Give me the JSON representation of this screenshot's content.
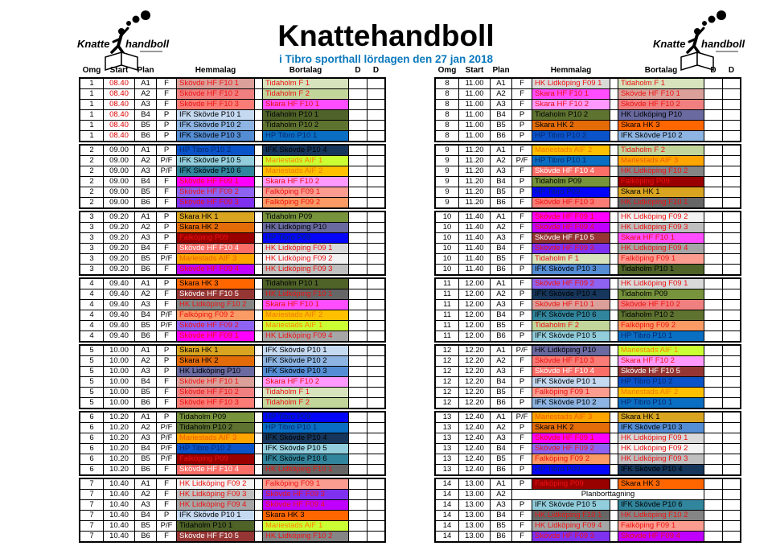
{
  "header": {
    "title": "Knattehandboll",
    "subtitle": "i Tibro sporthall lördagen den 27 jan 2018"
  },
  "logo": {
    "knatte": "Knatte",
    "handboll": "handboll"
  },
  "columns": {
    "omg": "Omg",
    "start": "Start",
    "plan": "Plan",
    "hemmalag": "Hemmalag",
    "bortalag": "Bortalag",
    "d1": "D",
    "d2": "D"
  },
  "special": {
    "planborttagning": "Planborttagning"
  },
  "colors": {
    "subtitle_blue": "#0a78be",
    "time_red": "#dd0000",
    "grid_black": "#000000"
  },
  "teams": {
    "Skövde HF F10 1": {
      "bg": "#dba09a",
      "fg": "#ee1111"
    },
    "Skövde HF F10 2": {
      "bg": "#f08080",
      "fg": "#ee1111"
    },
    "Skövde HF F10 3": {
      "bg": "#f97d76",
      "fg": "#ee1111"
    },
    "Skövde HF F10 4": {
      "bg": "#fa6e67",
      "fg": "#ffffff"
    },
    "Skövde HF F10 5": {
      "bg": "#963634",
      "fg": "#ffffff"
    },
    "Skövde HF F09 1": {
      "bg": "#ff00ff",
      "fg": "#ee1111"
    },
    "Skövde HF F09 2": {
      "bg": "#8f63f2",
      "fg": "#ee1111"
    },
    "Skövde HF F09 3": {
      "bg": "#7f31f0",
      "fg": "#ee1111"
    },
    "Skövde HF F09 4": {
      "bg": "#bf00ff",
      "fg": "#ee1111"
    },
    "Skara HF F10 1": {
      "bg": "#ff4dff",
      "fg": "#ee1111"
    },
    "Skara HF F10 2": {
      "bg": "#ff99ff",
      "fg": "#ee1111"
    },
    "Tidaholm F 1": {
      "bg": "#d6e3bc",
      "fg": "#ee1111"
    },
    "Tidaholm F 2": {
      "bg": "#c2d69b",
      "fg": "#ee1111"
    },
    "Falköping F09 1": {
      "bg": "#fa9d90",
      "fg": "#ee1111"
    },
    "Falköping F09 2": {
      "bg": "#fa9a65",
      "fg": "#ee1111"
    },
    "Falköping P09": {
      "bg": "#990000",
      "fg": "#ee1111"
    },
    "HK Lidköping F09 1": {
      "bg": "#d9d9d9",
      "fg": "#ee1111"
    },
    "HK Lidköping F09 2": {
      "bg": "#f2f2f2",
      "fg": "#ee1111"
    },
    "HK Lidköping F09 3": {
      "bg": "#bfbfbf",
      "fg": "#ee1111"
    },
    "HK Lidköping F09 4": {
      "bg": "#a6a6a6",
      "fg": "#ee1111"
    },
    "HK Lidköping F10 1": {
      "bg": "#666666",
      "fg": "#ee1111"
    },
    "HK Lidköping F10 2": {
      "bg": "#858585",
      "fg": "#ee1111"
    },
    "HK Lidköping P10": {
      "bg": "#6a6aa0",
      "fg": "#000000"
    },
    "IFK Skövde P10 1": {
      "bg": "#c5d9f1",
      "fg": "#000000"
    },
    "IFK Skövde P10 2": {
      "bg": "#8db4e2",
      "fg": "#000000"
    },
    "IFK Skövde P10 3": {
      "bg": "#548dd4",
      "fg": "#000000"
    },
    "IFK Skövde P10 4": {
      "bg": "#16365c",
      "fg": "#000000"
    },
    "IFK Skövde P10 5": {
      "bg": "#92cddc",
      "fg": "#000000"
    },
    "IFK Skövde P10 6": {
      "bg": "#31859c",
      "fg": "#000000"
    },
    "HP Tibro P10 1": {
      "bg": "#0a6ec2",
      "fg": "#06286c"
    },
    "HP Tibro P10 2": {
      "bg": "#0a53c8",
      "fg": "#06286c"
    },
    "HP Tibro P09": {
      "bg": "#0404f8",
      "fg": "#06286c"
    },
    "Tidaholm P09": {
      "bg": "#77933c",
      "fg": "#000000"
    },
    "Tidaholm P10 1": {
      "bg": "#4f6228",
      "fg": "#000000"
    },
    "Tidaholm P10 2": {
      "bg": "#5f7330",
      "fg": "#000000"
    },
    "Skara HK 1": {
      "bg": "#d9a521",
      "fg": "#000000"
    },
    "Skara HK 2": {
      "bg": "#e36c09",
      "fg": "#000000"
    },
    "Skara HK 3": {
      "bg": "#ff6600",
      "fg": "#000000"
    },
    "Mariestads AIF 1": {
      "bg": "#ccff33",
      "fg": "#ff8000"
    },
    "Mariestads AIF 2": {
      "bg": "#ffc000",
      "fg": "#f07800"
    },
    "Mariestads AIF 3": {
      "bg": "#ffa500",
      "fg": "#ea5e00"
    }
  },
  "left_rounds": [
    {
      "omg": "1",
      "start": "08.40",
      "red": true,
      "rows": [
        [
          "A1",
          "F",
          "Skövde HF F10 1",
          "Tidaholm F 1"
        ],
        [
          "A2",
          "F",
          "Skövde HF F10 2",
          "Tidaholm F 2"
        ],
        [
          "A3",
          "F",
          "Skövde HF F10 3",
          "Skara HF F10 1"
        ],
        [
          "B4",
          "P",
          "IFK Skövde P10 1",
          "Tidaholm P10 1"
        ],
        [
          "B5",
          "P",
          "IFK Skövde P10 2",
          "Tidaholm P10 2"
        ],
        [
          "B6",
          "P",
          "IFK Skövde P10 3",
          "HP Tibro P10 1"
        ]
      ]
    },
    {
      "omg": "2",
      "start": "09.00",
      "rows": [
        [
          "A1",
          "P",
          "HP Tibro P10 2",
          "IFK Skövde P10 4"
        ],
        [
          "A2",
          "P/F",
          "IFK Skövde P10 5",
          "Mariestads AIF 1"
        ],
        [
          "A3",
          "P/F",
          "IFK Skövde P10 6",
          "Mariestads AIF 2"
        ],
        [
          "B4",
          "F",
          "Skövde HF F09 1",
          "Skara HF F10 2"
        ],
        [
          "B5",
          "F",
          "Skövde HF F09 2",
          "Falköping F09 1"
        ],
        [
          "B6",
          "F",
          "Skövde HF F09 3",
          "Falköping F09 2"
        ]
      ]
    },
    {
      "omg": "3",
      "start": "09.20",
      "rows": [
        [
          "A1",
          "P",
          "Skara HK 1",
          "Tidaholm P09"
        ],
        [
          "A2",
          "P",
          "Skara HK 2",
          "HK Lidköping P10"
        ],
        [
          "A3",
          "P",
          "Falköping P09",
          "HP Tibro P09"
        ],
        [
          "B4",
          "F",
          "Skövde HF F10 4",
          "HK Lidköping F09 1"
        ],
        [
          "B5",
          "P/F",
          "Mariestads AIF 3",
          "HK Lidköping F09 2"
        ],
        [
          "B6",
          "F",
          "Skövde HF F09 4",
          "HK Lidköping F09 3"
        ]
      ]
    },
    {
      "omg": "4",
      "start": "09.40",
      "rows": [
        [
          "A1",
          "P",
          "Skara HK 3",
          "Tidaholm P10 1"
        ],
        [
          "A2",
          "F",
          "Skövde HF F10 5",
          "HK Lidköping F10 1"
        ],
        [
          "A3",
          "F",
          "HK Lidköping F10 2",
          "Skara HF F10 1"
        ],
        [
          "B4",
          "P/F",
          "Falköping F09 2",
          "Mariestads AIF 2"
        ],
        [
          "B5",
          "P/F",
          "Skövde HF F09 2",
          "Mariestads AIF 1"
        ],
        [
          "B6",
          "F",
          "Skövde HF F09 1",
          "HK Lidköping F09 4"
        ]
      ]
    },
    {
      "omg": "5",
      "start": "10.00",
      "rows": [
        [
          "A1",
          "P",
          "Skara HK 1",
          "IFK Skövde P10 1"
        ],
        [
          "A2",
          "P",
          "Skara HK 2",
          "IFK Skövde P10 2"
        ],
        [
          "A3",
          "P",
          "HK Lidköping P10",
          "IFK Skövde P10 3"
        ],
        [
          "B4",
          "F",
          "Skövde HF F10 1",
          "Skara HF F10 2"
        ],
        [
          "B5",
          "F",
          "Skövde HF F10 2",
          "Tidaholm F 1"
        ],
        [
          "B6",
          "F",
          "Skövde HF F10 3",
          "Tidaholm F 2"
        ]
      ]
    },
    {
      "omg": "6",
      "start": "10.20",
      "rows": [
        [
          "A1",
          "P",
          "Tidaholm P09",
          "HP Tibro P09"
        ],
        [
          "A2",
          "P/F",
          "Tidaholm P10 2",
          "HP Tibro P10 1"
        ],
        [
          "A3",
          "P/F",
          "Mariestads AIF 3",
          "IFK Skövde P10 4"
        ],
        [
          "B4",
          "P/F",
          "HP Tibro P10 2",
          "IFK Skövde P10 5"
        ],
        [
          "B5",
          "P/F",
          "Falköping P09",
          "IFK Skövde P10 6"
        ],
        [
          "B6",
          "F",
          "Skövde HF F10 4",
          "HK Lidköping F10 1"
        ]
      ]
    },
    {
      "omg": "7",
      "start": "10.40",
      "rows": [
        [
          "A1",
          "F",
          "HK Lidköping F09 2",
          "Falköping F09 1"
        ],
        [
          "A2",
          "F",
          "HK Lidköping F09 3",
          "Skövde HF F09 3"
        ],
        [
          "A3",
          "F",
          "HK Lidköping F09 4",
          "Skövde HF F09 4"
        ],
        [
          "B4",
          "P",
          "IFK Skövde P10 1",
          "Skara HK 3"
        ],
        [
          "B5",
          "P/F",
          "Tidaholm P10 1",
          "Mariestads AIF 1"
        ],
        [
          "B6",
          "F",
          "Skövde HF F10 5",
          "HK Lidköping F10 2"
        ]
      ]
    }
  ],
  "right_rounds": [
    {
      "omg": "8",
      "start": "11.00",
      "rows": [
        [
          "A1",
          "F",
          "HK Lidköping F09 1",
          "Tidaholm F 1"
        ],
        [
          "A2",
          "F",
          "Skara HF F10 1",
          "Skövde HF F10 1"
        ],
        [
          "A3",
          "F",
          "Skara HF F10 2",
          "Skövde HF F10 2"
        ],
        [
          "B4",
          "P",
          "Tidaholm P10 2",
          "HK Lidköping P10"
        ],
        [
          "B5",
          "P",
          "Skara HK 2",
          "Skara HK 3"
        ],
        [
          "B6",
          "P",
          "HP Tibro P10 2",
          "IFK Skövde P10 2"
        ]
      ]
    },
    {
      "omg": "9",
      "start": "11.20",
      "rows": [
        [
          "A1",
          "F",
          "Mariestads AIF 2",
          "Tidaholm F 2"
        ],
        [
          "A2",
          "P/F",
          "HP Tibro P10 1",
          "Mariestads AIF 3"
        ],
        [
          "A3",
          "F",
          "Skövde HF F10 4",
          "HK Lidköping F10 2"
        ],
        [
          "B4",
          "P",
          "Tidaholm P09",
          "Falköping P09"
        ],
        [
          "B5",
          "P",
          "HP Tibro P09",
          "Skara HK 1"
        ],
        [
          "B6",
          "F",
          "Skövde HF F10 3",
          "HK Lidköping F10 1"
        ]
      ]
    },
    {
      "omg": "10",
      "start": "11.40",
      "rows": [
        [
          "A1",
          "F",
          "Skövde HF F09 1",
          "HK Lidköping F09 2"
        ],
        [
          "A2",
          "F",
          "Skövde HF F09 4",
          "HK Lidköping F09 3"
        ],
        [
          "A3",
          "F",
          "Skövde HF F10 5",
          "Skara HF F10 1"
        ],
        [
          "B4",
          "F",
          "Skövde HF F09 3",
          "HK Lidköping F09 4"
        ],
        [
          "B5",
          "F",
          "Tidaholm F 1",
          "Falköping F09 1"
        ],
        [
          "B6",
          "P",
          "IFK Skövde P10 3",
          "Tidaholm P10 1"
        ]
      ]
    },
    {
      "omg": "11",
      "start": "12.00",
      "rows": [
        [
          "A1",
          "F",
          "Skövde HF F09 2",
          "HK Lidköping F09 1"
        ],
        [
          "A2",
          "P",
          "IFK Skövde P10 4",
          "Tidaholm P09"
        ],
        [
          "A3",
          "F",
          "Skövde HF F10 1",
          "Skövde HF F10 2"
        ],
        [
          "B4",
          "P",
          "IFK Skövde P10 6",
          "Tidaholm P10 2"
        ],
        [
          "B5",
          "F",
          "Tidaholm F 2",
          "Falköping F09 2"
        ],
        [
          "B6",
          "P",
          "IFK Skövde P10 5",
          "HP Tibro P10 1"
        ]
      ]
    },
    {
      "omg": "12",
      "start": "12.20",
      "rows": [
        [
          "A1",
          "P/F",
          "HK Lidköping P10",
          "Mariestads AIF 1"
        ],
        [
          "A2",
          "F",
          "Skövde HF F10 3",
          "Skara HF F10 2"
        ],
        [
          "A3",
          "F",
          "Skövde HF F10 4",
          "Skövde HF F10 5"
        ],
        [
          "B4",
          "P",
          "IFK Skövde P10 1",
          "HP Tibro P10 2"
        ],
        [
          "B5",
          "F",
          "Falköping F09 1",
          "Mariestads AIF 2"
        ],
        [
          "B6",
          "P",
          "IFK Skövde P10 2",
          "HP Tibro P10 1"
        ]
      ]
    },
    {
      "omg": "13",
      "start": "12.40",
      "rows": [
        [
          "A1",
          "P/F",
          "Mariestads AIF 3",
          "Skara HK 1"
        ],
        [
          "A2",
          "P",
          "Skara HK 2",
          "IFK Skövde P10 3"
        ],
        [
          "A3",
          "F",
          "Skövde HF F09 1",
          "HK Lidköping F09 1"
        ],
        [
          "B4",
          "F",
          "Skövde HF F09 2",
          "HK Lidköping F09 2"
        ],
        [
          "B5",
          "F",
          "Falköping F09 2",
          "HK Lidköping F09 3"
        ],
        [
          "B6",
          "P",
          "HP Tibro P09",
          "IFK Skövde P10 4"
        ]
      ]
    },
    {
      "omg": "14",
      "start": "13.00",
      "rows": [
        [
          "A1",
          "P",
          "Falköping P09",
          "Skara HK 3"
        ],
        [
          "A2",
          "",
          "",
          ""
        ],
        [
          "A3",
          "P",
          "IFK Skövde P10 5",
          "IFK Skövde P10 6"
        ],
        [
          "B4",
          "F",
          "HK Lidköping F10 1",
          "HK Lidköping F10 2"
        ],
        [
          "B5",
          "F",
          "HK Lidköping F09 4",
          "Falköping F09 1"
        ],
        [
          "B6",
          "F",
          "Skövde HF F09 3",
          "Skövde HF F09 4"
        ]
      ]
    }
  ]
}
